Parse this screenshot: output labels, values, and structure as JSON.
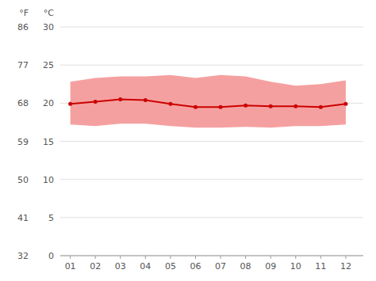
{
  "chart_data": {
    "type": "line",
    "x": [
      1,
      2,
      3,
      4,
      5,
      6,
      7,
      8,
      9,
      10,
      11,
      12
    ],
    "xlim": [
      0.6,
      12.7
    ],
    "xticks": [
      {
        "value": 1,
        "label": "01"
      },
      {
        "value": 2,
        "label": "02"
      },
      {
        "value": 3,
        "label": "03"
      },
      {
        "value": 4,
        "label": "04"
      },
      {
        "value": 5,
        "label": "05"
      },
      {
        "value": 6,
        "label": "06"
      },
      {
        "value": 7,
        "label": "07"
      },
      {
        "value": 8,
        "label": "08"
      },
      {
        "value": 9,
        "label": "09"
      },
      {
        "value": 10,
        "label": "10"
      },
      {
        "value": 11,
        "label": "11"
      },
      {
        "value": 12,
        "label": "12"
      }
    ],
    "series": [
      {
        "type": "band",
        "color": "#f5a0a0",
        "low": [
          17.2,
          17.0,
          17.3,
          17.3,
          17.0,
          16.8,
          16.8,
          16.9,
          16.8,
          17.0,
          17.0,
          17.2
        ],
        "high": [
          22.8,
          23.3,
          23.5,
          23.5,
          23.7,
          23.3,
          23.7,
          23.5,
          22.8,
          22.3,
          22.5,
          23.0
        ]
      },
      {
        "type": "line",
        "color": "#cc0000",
        "marker": "circle",
        "values": [
          19.9,
          20.2,
          20.5,
          20.4,
          19.9,
          19.5,
          19.5,
          19.7,
          19.6,
          19.6,
          19.5,
          19.9
        ]
      }
    ],
    "ylim": [
      0,
      30
    ],
    "yticks": [
      0,
      5,
      10,
      15,
      20,
      25,
      30
    ],
    "ylabel": "°C",
    "y2lim": [
      32,
      86
    ],
    "y2ticks": [
      32,
      41,
      50,
      59,
      68,
      77,
      86
    ],
    "y2label": "°F",
    "grid": true
  }
}
